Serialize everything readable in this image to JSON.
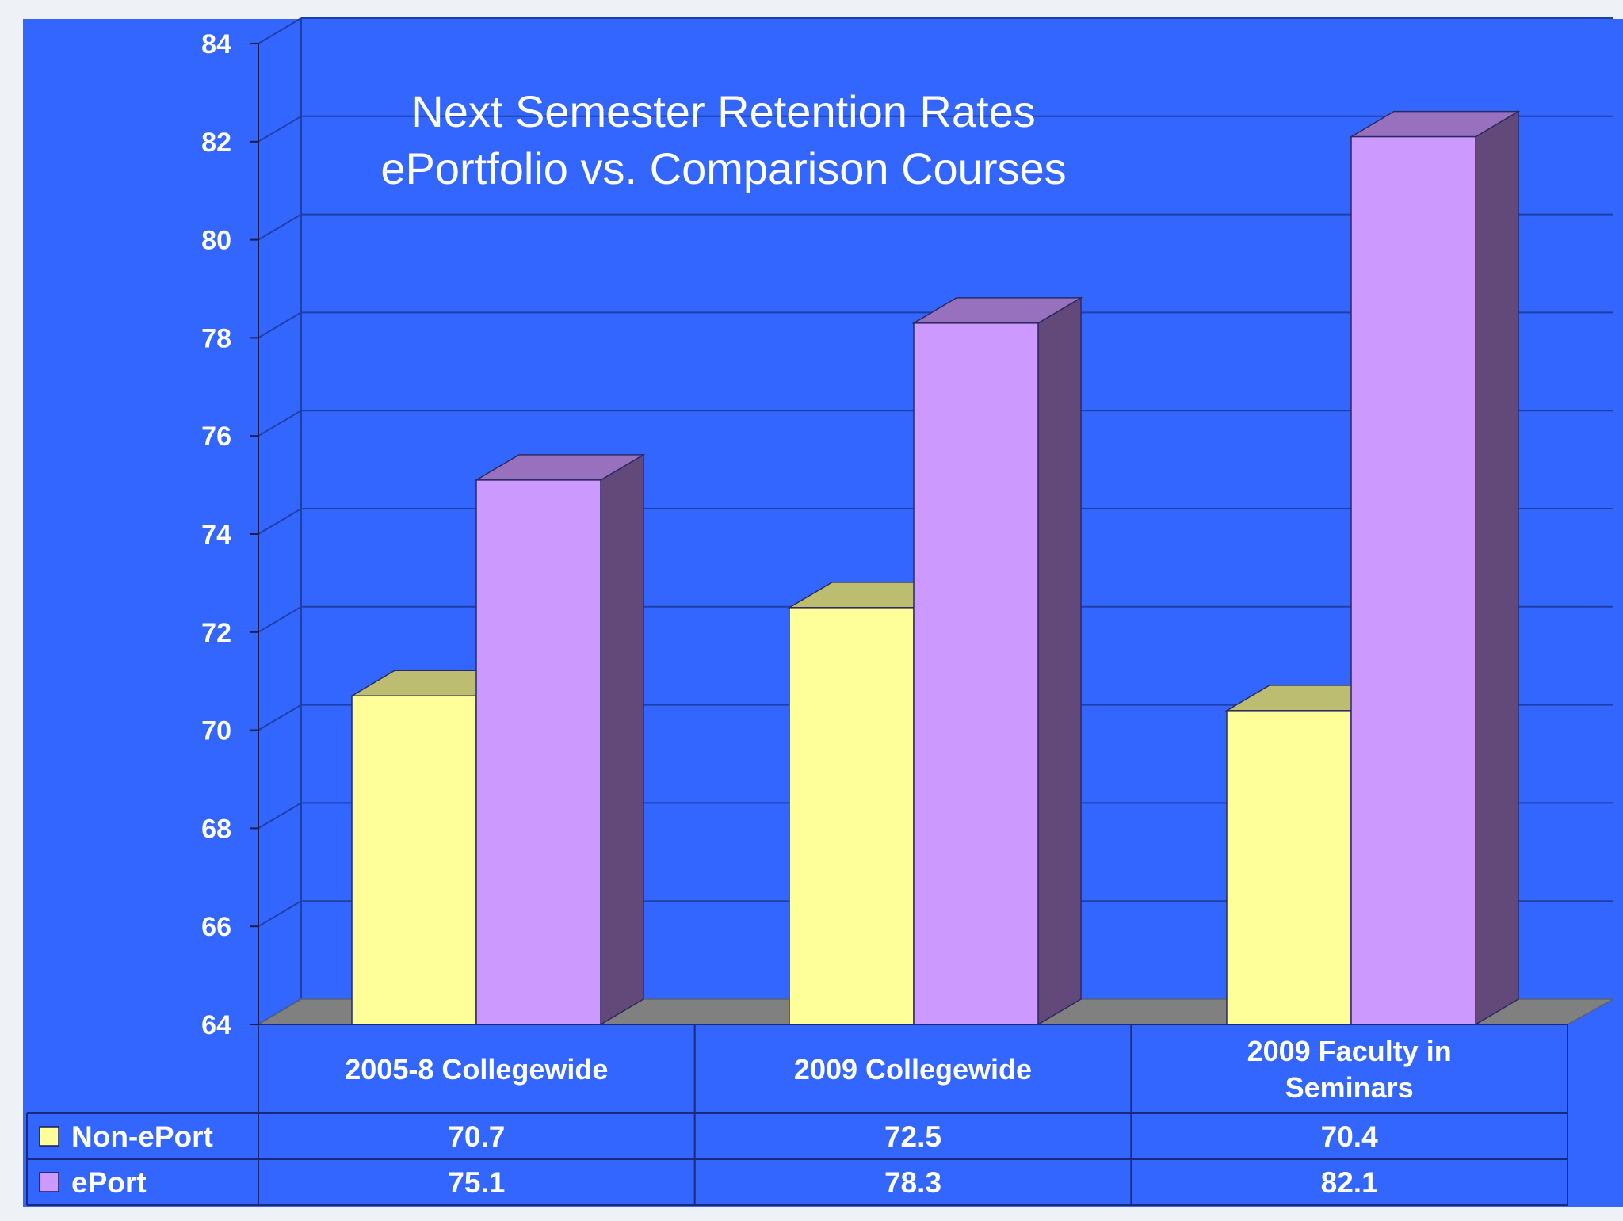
{
  "chart_data": {
    "type": "bar",
    "title_lines": [
      "Next Semester Retention Rates",
      "ePortfolio vs. Comparison Courses"
    ],
    "categories": [
      "2005-8 Collegewide",
      "2009 Collegewide",
      "2009 Faculty in Seminars"
    ],
    "series": [
      {
        "name": "Non-ePort",
        "values": [
          70.7,
          72.5,
          70.4
        ],
        "color": "#ffff99"
      },
      {
        "name": "ePort",
        "values": [
          75.1,
          78.3,
          82.1
        ],
        "color": "#cc99ff"
      }
    ],
    "ylim": [
      64,
      84
    ],
    "yticks": [
      "64",
      "66",
      "68",
      "70",
      "72",
      "74",
      "76",
      "78",
      "80",
      "82",
      "84"
    ],
    "grid": true,
    "legend": "data-table",
    "background_color": "#3366ff",
    "floor_color": "#808080"
  }
}
